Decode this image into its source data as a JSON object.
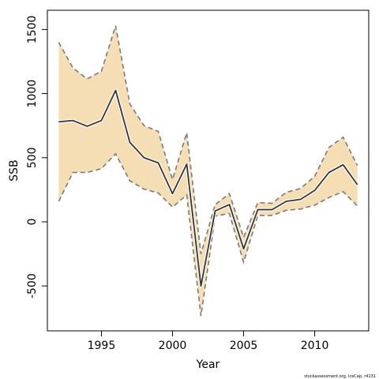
{
  "chart_data": {
    "type": "area",
    "xlabel": "Year",
    "ylabel": "SSB",
    "xlim": [
      1991.2,
      2013.8
    ],
    "ylim": [
      -850,
      1650
    ],
    "x_ticks": [
      1995,
      2000,
      2005,
      2010
    ],
    "y_ticks": [
      -500,
      0,
      500,
      1000,
      1500
    ],
    "band_fill_color": "#f5deb3",
    "bound_line_color": "#7a7a7a",
    "estimate_line_color": "#333333",
    "grid": false,
    "x": [
      1992,
      1993,
      1994,
      1995,
      1996,
      1997,
      1998,
      1999,
      2000,
      2001,
      2002,
      2003,
      2004,
      2005,
      2006,
      2007,
      2008,
      2009,
      2010,
      2011,
      2012,
      2013
    ],
    "series": [
      {
        "role": "estimate",
        "values": [
          780,
          790,
          745,
          790,
          1025,
          620,
          500,
          460,
          220,
          450,
          -500,
          85,
          135,
          -210,
          95,
          95,
          160,
          175,
          245,
          385,
          445,
          290
        ]
      },
      {
        "role": "upper",
        "values": [
          1400,
          1200,
          1115,
          1175,
          1530,
          920,
          750,
          705,
          330,
          695,
          -250,
          135,
          220,
          -120,
          150,
          145,
          230,
          260,
          355,
          580,
          660,
          440
        ]
      },
      {
        "role": "lower",
        "values": [
          160,
          385,
          385,
          415,
          530,
          320,
          255,
          225,
          115,
          210,
          -735,
          45,
          65,
          -315,
          50,
          50,
          90,
          100,
          130,
          190,
          235,
          125
        ]
      }
    ]
  },
  "footer": {
    "credit": "stockassessment.org, IceCap, r4131"
  }
}
